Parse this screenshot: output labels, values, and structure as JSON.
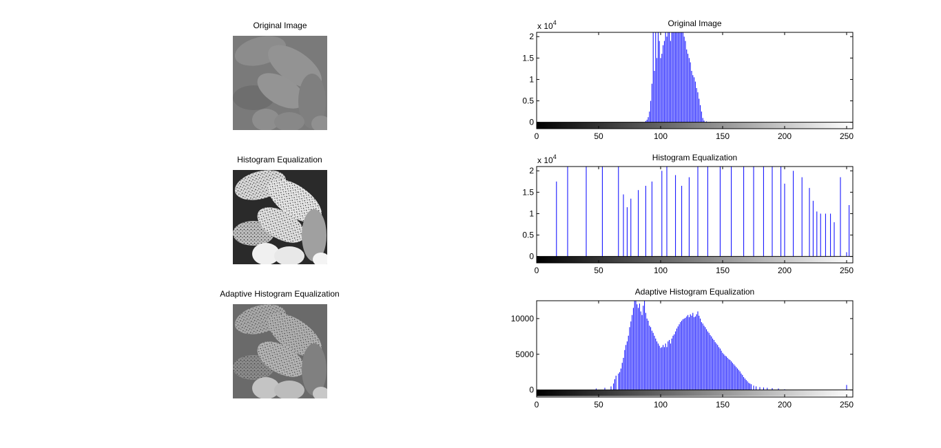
{
  "images": [
    {
      "title": "Original Image",
      "tone": "low-contrast"
    },
    {
      "title": "Histogram Equalization",
      "tone": "high-contrast"
    },
    {
      "title": "Adaptive Histogram Equalization",
      "tone": "medium-contrast"
    }
  ],
  "chart_data": [
    {
      "type": "bar",
      "title": "Original Image",
      "exponent_label": "x 10",
      "exponent_sup": "4",
      "xlim": [
        0,
        255
      ],
      "ylim": [
        -1500,
        21000
      ],
      "xticks": [
        0,
        50,
        100,
        150,
        200,
        250
      ],
      "yticks": [
        0,
        5000,
        10000,
        15000,
        20000
      ],
      "ytick_labels": [
        "0",
        "0.5",
        "1",
        "1.5",
        "2"
      ],
      "bar_color": "#0000ff",
      "colorbar": "gray",
      "bins": [
        [
          88,
          300
        ],
        [
          89,
          600
        ],
        [
          90,
          1200
        ],
        [
          91,
          2500
        ],
        [
          92,
          5000
        ],
        [
          93,
          9000
        ],
        [
          94,
          25000
        ],
        [
          95,
          12000
        ],
        [
          96,
          25000
        ],
        [
          97,
          15000
        ],
        [
          98,
          25000
        ],
        [
          99,
          19000
        ],
        [
          100,
          15000
        ],
        [
          101,
          16000
        ],
        [
          102,
          18000
        ],
        [
          103,
          19000
        ],
        [
          104,
          25000
        ],
        [
          105,
          20000
        ],
        [
          106,
          21000
        ],
        [
          107,
          25000
        ],
        [
          108,
          19000
        ],
        [
          109,
          23000
        ],
        [
          110,
          25000
        ],
        [
          111,
          22000
        ],
        [
          112,
          25000
        ],
        [
          113,
          23000
        ],
        [
          114,
          25000
        ],
        [
          115,
          22000
        ],
        [
          116,
          25000
        ],
        [
          117,
          23000
        ],
        [
          118,
          21000
        ],
        [
          119,
          20000
        ],
        [
          120,
          19000
        ],
        [
          121,
          17000
        ],
        [
          122,
          16000
        ],
        [
          123,
          15000
        ],
        [
          124,
          14000
        ],
        [
          125,
          12000
        ],
        [
          126,
          11000
        ],
        [
          127,
          10500
        ],
        [
          128,
          9500
        ],
        [
          129,
          8000
        ],
        [
          130,
          7000
        ],
        [
          131,
          5500
        ],
        [
          132,
          4000
        ],
        [
          133,
          2500
        ],
        [
          134,
          1000
        ],
        [
          135,
          400
        ],
        [
          137,
          200
        ],
        [
          140,
          100
        ]
      ]
    },
    {
      "type": "bar",
      "title": "Histogram Equalization",
      "exponent_label": "x 10",
      "exponent_sup": "4",
      "xlim": [
        0,
        255
      ],
      "ylim": [
        -1500,
        21000
      ],
      "xticks": [
        0,
        50,
        100,
        150,
        200,
        250
      ],
      "yticks": [
        0,
        5000,
        10000,
        15000,
        20000
      ],
      "ytick_labels": [
        "0",
        "0.5",
        "1",
        "1.5",
        "2"
      ],
      "bar_color": "#0000ff",
      "colorbar": "gray",
      "bins": [
        [
          16,
          17500
        ],
        [
          25,
          25000
        ],
        [
          40,
          25000
        ],
        [
          53,
          25000
        ],
        [
          66,
          25000
        ],
        [
          70,
          14500
        ],
        [
          73,
          11500
        ],
        [
          76,
          13500
        ],
        [
          82,
          15500
        ],
        [
          88,
          16500
        ],
        [
          93,
          17500
        ],
        [
          101,
          20000
        ],
        [
          105,
          25000
        ],
        [
          112,
          19000
        ],
        [
          117,
          16500
        ],
        [
          123,
          18500
        ],
        [
          130,
          25000
        ],
        [
          138,
          25000
        ],
        [
          148,
          25000
        ],
        [
          157,
          25000
        ],
        [
          167,
          25000
        ],
        [
          175,
          25000
        ],
        [
          183,
          25000
        ],
        [
          190,
          25000
        ],
        [
          197,
          25000
        ],
        [
          200,
          17000
        ],
        [
          207,
          20000
        ],
        [
          214,
          18500
        ],
        [
          220,
          16000
        ],
        [
          223,
          13000
        ],
        [
          226,
          10500
        ],
        [
          229,
          10000
        ],
        [
          233,
          10000
        ],
        [
          237,
          10000
        ],
        [
          240,
          8000
        ],
        [
          245,
          18500
        ],
        [
          250,
          1000
        ],
        [
          252,
          12000
        ]
      ]
    },
    {
      "type": "bar",
      "title": "Adaptive Histogram Equalization",
      "xlim": [
        0,
        255
      ],
      "ylim": [
        -1000,
        12500
      ],
      "xticks": [
        0,
        50,
        100,
        150,
        200,
        250
      ],
      "yticks": [
        0,
        5000,
        10000
      ],
      "ytick_labels": [
        "0",
        "5000",
        "10000"
      ],
      "bar_color": "#0000ff",
      "colorbar": "gray",
      "bins": [
        [
          48,
          200
        ],
        [
          55,
          300
        ],
        [
          60,
          500
        ],
        [
          62,
          900
        ],
        [
          63,
          1500
        ],
        [
          64,
          2000
        ],
        [
          66,
          2300
        ],
        [
          67,
          2500
        ],
        [
          68,
          3000
        ],
        [
          69,
          3800
        ],
        [
          70,
          4500
        ],
        [
          71,
          5600
        ],
        [
          72,
          6300
        ],
        [
          73,
          6800
        ],
        [
          74,
          7600
        ],
        [
          75,
          8800
        ],
        [
          76,
          9600
        ],
        [
          77,
          10500
        ],
        [
          78,
          11500
        ],
        [
          79,
          12500
        ],
        [
          80,
          13000
        ],
        [
          81,
          12000
        ],
        [
          82,
          11500
        ],
        [
          83,
          12100
        ],
        [
          84,
          11000
        ],
        [
          85,
          10500
        ],
        [
          86,
          11800
        ],
        [
          87,
          12500
        ],
        [
          88,
          10800
        ],
        [
          89,
          10000
        ],
        [
          90,
          9700
        ],
        [
          91,
          9000
        ],
        [
          92,
          8800
        ],
        [
          93,
          8300
        ],
        [
          94,
          8000
        ],
        [
          95,
          7600
        ],
        [
          96,
          7200
        ],
        [
          97,
          6800
        ],
        [
          98,
          6500
        ],
        [
          99,
          6200
        ],
        [
          100,
          5900
        ],
        [
          101,
          6000
        ],
        [
          102,
          6300
        ],
        [
          103,
          6000
        ],
        [
          104,
          6500
        ],
        [
          105,
          6000
        ],
        [
          106,
          6800
        ],
        [
          107,
          7000
        ],
        [
          108,
          6500
        ],
        [
          109,
          7200
        ],
        [
          110,
          7600
        ],
        [
          111,
          7800
        ],
        [
          112,
          8200
        ],
        [
          113,
          8600
        ],
        [
          114,
          8900
        ],
        [
          115,
          9200
        ],
        [
          116,
          9500
        ],
        [
          117,
          9700
        ],
        [
          118,
          9900
        ],
        [
          119,
          10000
        ],
        [
          120,
          10100
        ],
        [
          121,
          10300
        ],
        [
          122,
          10500
        ],
        [
          123,
          10200
        ],
        [
          124,
          10600
        ],
        [
          125,
          10400
        ],
        [
          126,
          10800
        ],
        [
          127,
          10200
        ],
        [
          128,
          10300
        ],
        [
          129,
          10600
        ],
        [
          130,
          11000
        ],
        [
          131,
          10400
        ],
        [
          132,
          10000
        ],
        [
          133,
          9500
        ],
        [
          134,
          9300
        ],
        [
          135,
          9000
        ],
        [
          136,
          8800
        ],
        [
          137,
          8500
        ],
        [
          138,
          8200
        ],
        [
          139,
          8000
        ],
        [
          140,
          7700
        ],
        [
          141,
          7500
        ],
        [
          142,
          7200
        ],
        [
          143,
          7000
        ],
        [
          144,
          6700
        ],
        [
          145,
          6500
        ],
        [
          146,
          6300
        ],
        [
          147,
          6000
        ],
        [
          148,
          5800
        ],
        [
          149,
          5500
        ],
        [
          150,
          5200
        ],
        [
          151,
          5000
        ],
        [
          152,
          4800
        ],
        [
          153,
          4700
        ],
        [
          154,
          4500
        ],
        [
          155,
          4300
        ],
        [
          156,
          4200
        ],
        [
          157,
          4000
        ],
        [
          158,
          3800
        ],
        [
          159,
          3600
        ],
        [
          160,
          3400
        ],
        [
          161,
          3200
        ],
        [
          162,
          3000
        ],
        [
          163,
          2800
        ],
        [
          164,
          2600
        ],
        [
          165,
          2300
        ],
        [
          166,
          2100
        ],
        [
          167,
          1800
        ],
        [
          168,
          1600
        ],
        [
          169,
          1400
        ],
        [
          170,
          1200
        ],
        [
          171,
          1000
        ],
        [
          172,
          900
        ],
        [
          173,
          800
        ],
        [
          175,
          600
        ],
        [
          177,
          500
        ],
        [
          180,
          400
        ],
        [
          183,
          350
        ],
        [
          186,
          300
        ],
        [
          190,
          250
        ],
        [
          195,
          200
        ],
        [
          200,
          100
        ],
        [
          250,
          700
        ]
      ]
    }
  ]
}
